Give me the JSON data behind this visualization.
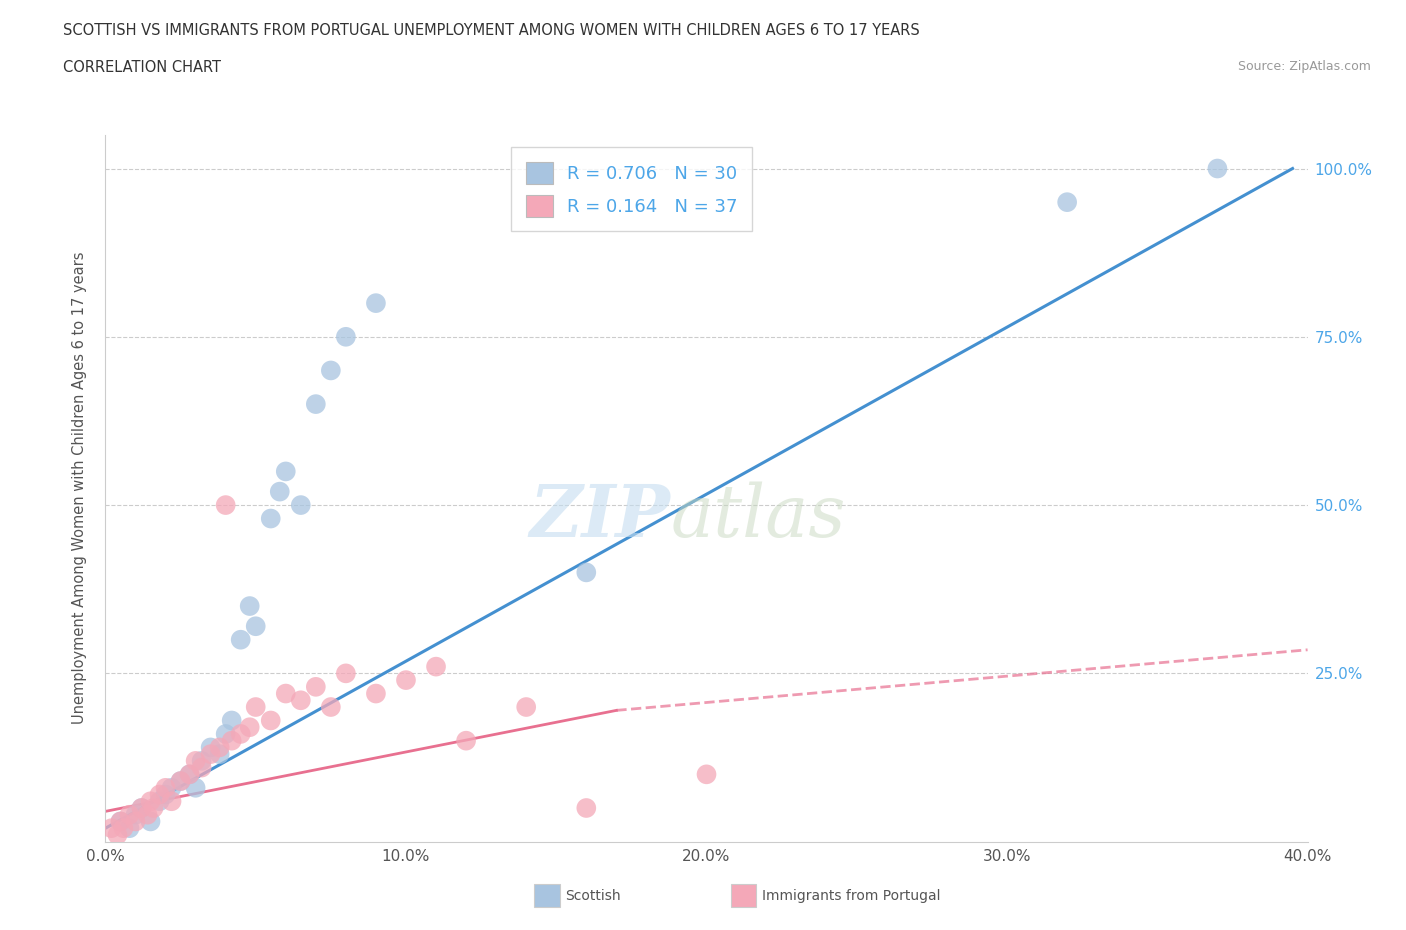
{
  "title_line1": "SCOTTISH VS IMMIGRANTS FROM PORTUGAL UNEMPLOYMENT AMONG WOMEN WITH CHILDREN AGES 6 TO 17 YEARS",
  "title_line2": "CORRELATION CHART",
  "source_text": "Source: ZipAtlas.com",
  "ylabel": "Unemployment Among Women with Children Ages 6 to 17 years",
  "xlim": [
    0.0,
    0.4
  ],
  "ylim": [
    0.0,
    1.05
  ],
  "xtick_labels": [
    "0.0%",
    "10.0%",
    "20.0%",
    "30.0%",
    "40.0%"
  ],
  "xtick_values": [
    0.0,
    0.1,
    0.2,
    0.3,
    0.4
  ],
  "ytick_values": [
    0.25,
    0.5,
    0.75,
    1.0
  ],
  "right_ytick_labels": [
    "25.0%",
    "50.0%",
    "75.0%",
    "100.0%"
  ],
  "scottish_color": "#a8c4e0",
  "portugal_color": "#f4a8b8",
  "scottish_line_color": "#4490d0",
  "portugal_line_color": "#e87090",
  "R_scottish": 0.706,
  "N_scottish": 30,
  "R_portugal": 0.164,
  "N_portugal": 37,
  "scottish_points": [
    [
      0.005,
      0.03
    ],
    [
      0.008,
      0.02
    ],
    [
      0.01,
      0.04
    ],
    [
      0.012,
      0.05
    ],
    [
      0.015,
      0.03
    ],
    [
      0.018,
      0.06
    ],
    [
      0.02,
      0.07
    ],
    [
      0.022,
      0.08
    ],
    [
      0.025,
      0.09
    ],
    [
      0.028,
      0.1
    ],
    [
      0.03,
      0.08
    ],
    [
      0.032,
      0.12
    ],
    [
      0.035,
      0.14
    ],
    [
      0.038,
      0.13
    ],
    [
      0.04,
      0.16
    ],
    [
      0.042,
      0.18
    ],
    [
      0.045,
      0.3
    ],
    [
      0.048,
      0.35
    ],
    [
      0.05,
      0.32
    ],
    [
      0.055,
      0.48
    ],
    [
      0.058,
      0.52
    ],
    [
      0.06,
      0.55
    ],
    [
      0.065,
      0.5
    ],
    [
      0.07,
      0.65
    ],
    [
      0.075,
      0.7
    ],
    [
      0.08,
      0.75
    ],
    [
      0.09,
      0.8
    ],
    [
      0.16,
      0.4
    ],
    [
      0.37,
      1.0
    ],
    [
      0.32,
      0.95
    ]
  ],
  "portugal_points": [
    [
      0.002,
      0.02
    ],
    [
      0.004,
      0.01
    ],
    [
      0.005,
      0.03
    ],
    [
      0.006,
      0.02
    ],
    [
      0.008,
      0.04
    ],
    [
      0.01,
      0.03
    ],
    [
      0.012,
      0.05
    ],
    [
      0.014,
      0.04
    ],
    [
      0.015,
      0.06
    ],
    [
      0.016,
      0.05
    ],
    [
      0.018,
      0.07
    ],
    [
      0.02,
      0.08
    ],
    [
      0.022,
      0.06
    ],
    [
      0.025,
      0.09
    ],
    [
      0.028,
      0.1
    ],
    [
      0.03,
      0.12
    ],
    [
      0.032,
      0.11
    ],
    [
      0.035,
      0.13
    ],
    [
      0.038,
      0.14
    ],
    [
      0.04,
      0.5
    ],
    [
      0.042,
      0.15
    ],
    [
      0.045,
      0.16
    ],
    [
      0.048,
      0.17
    ],
    [
      0.05,
      0.2
    ],
    [
      0.055,
      0.18
    ],
    [
      0.06,
      0.22
    ],
    [
      0.065,
      0.21
    ],
    [
      0.07,
      0.23
    ],
    [
      0.075,
      0.2
    ],
    [
      0.08,
      0.25
    ],
    [
      0.09,
      0.22
    ],
    [
      0.1,
      0.24
    ],
    [
      0.11,
      0.26
    ],
    [
      0.12,
      0.15
    ],
    [
      0.14,
      0.2
    ],
    [
      0.16,
      0.05
    ],
    [
      0.2,
      0.1
    ]
  ],
  "watermark_zip": "ZIP",
  "watermark_atlas": "atlas",
  "background_color": "#ffffff",
  "grid_color": "#cccccc"
}
